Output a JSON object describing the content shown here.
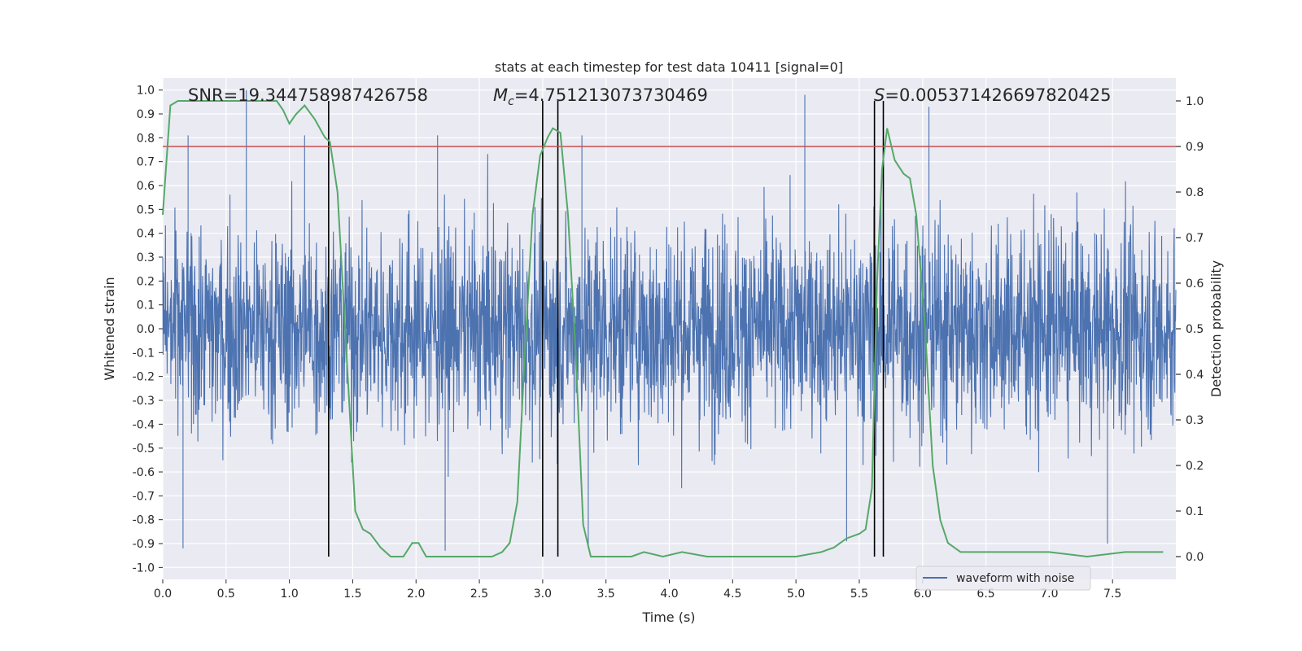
{
  "chart_data": {
    "type": "line",
    "title": "stats at each timestep for test data 10411 [signal=0]",
    "xlabel": "Time (s)",
    "ylabel": "Whitened strain",
    "y2label": "Detection probability",
    "xlim": [
      0.0,
      8.0
    ],
    "ylim": [
      -1.05,
      1.05
    ],
    "y2lim": [
      -0.05,
      1.05
    ],
    "x_ticks": [
      "0.0",
      "0.5",
      "1.0",
      "1.5",
      "2.0",
      "2.5",
      "3.0",
      "3.5",
      "4.0",
      "4.5",
      "5.0",
      "5.5",
      "6.0",
      "6.5",
      "7.0",
      "7.5"
    ],
    "y_ticks": [
      "-1.0",
      "-0.9",
      "-0.8",
      "-0.7",
      "-0.6",
      "-0.5",
      "-0.4",
      "-0.3",
      "-0.2",
      "-0.1",
      "0.0",
      "0.1",
      "0.2",
      "0.3",
      "0.4",
      "0.5",
      "0.6",
      "0.7",
      "0.8",
      "0.9",
      "1.0"
    ],
    "y2_ticks": [
      "0.0",
      "0.1",
      "0.2",
      "0.3",
      "0.4",
      "0.5",
      "0.6",
      "0.7",
      "0.8",
      "0.9",
      "1.0"
    ],
    "grid": true,
    "legend_position": "lower-right",
    "colors": {
      "waveform": "#4c72b0",
      "probability": "#55a868",
      "threshold": "#c44e52",
      "markers": "#000000",
      "background": "#eaeaf2",
      "grid": "#ffffff"
    },
    "annotations": {
      "snr": "SNR=19.344758987426758",
      "mc_symbol": "M",
      "mc_subscript": "c",
      "mc_value": "=4.751213073730469",
      "s_symbol": "S",
      "s_value": "=0.005371426697820425"
    },
    "threshold_y2": 0.9,
    "vertical_lines_x": [
      1.31,
      3.0,
      3.12,
      5.62,
      5.69
    ],
    "series": [
      {
        "name": "waveform with noise",
        "style": "noise",
        "x_range": [
          0.0,
          8.0
        ],
        "envelope_typical": [
          -0.55,
          0.55
        ],
        "spike_peaks": [
          {
            "x": 0.2,
            "y": 0.81
          },
          {
            "x": 0.66,
            "y": 1.0
          },
          {
            "x": 1.12,
            "y": 0.81
          },
          {
            "x": 2.17,
            "y": 0.81
          },
          {
            "x": 3.31,
            "y": 0.81
          },
          {
            "x": 5.07,
            "y": 0.98
          },
          {
            "x": 6.05,
            "y": 0.93
          },
          {
            "x": 0.16,
            "y": -0.92
          },
          {
            "x": 2.23,
            "y": -0.93
          },
          {
            "x": 3.36,
            "y": -0.92
          },
          {
            "x": 7.46,
            "y": -0.9
          },
          {
            "x": 5.4,
            "y": -0.89
          }
        ]
      },
      {
        "name": "",
        "style": "probability",
        "x": [
          0.0,
          0.06,
          0.12,
          0.2,
          0.3,
          0.4,
          0.5,
          0.6,
          0.7,
          0.8,
          0.9,
          0.95,
          1.0,
          1.05,
          1.12,
          1.2,
          1.28,
          1.32,
          1.38,
          1.45,
          1.52,
          1.58,
          1.64,
          1.72,
          1.8,
          1.9,
          1.97,
          2.02,
          2.08,
          2.2,
          2.3,
          2.45,
          2.6,
          2.68,
          2.74,
          2.8,
          2.86,
          2.92,
          2.98,
          3.04,
          3.08,
          3.14,
          3.2,
          3.26,
          3.32,
          3.38,
          3.5,
          3.7,
          3.8,
          3.95,
          4.1,
          4.3,
          4.6,
          5.0,
          5.2,
          5.3,
          5.4,
          5.5,
          5.55,
          5.6,
          5.64,
          5.68,
          5.72,
          5.78,
          5.85,
          5.9,
          5.95,
          6.02,
          6.08,
          6.14,
          6.2,
          6.3,
          6.5,
          6.7,
          7.0,
          7.3,
          7.6,
          7.9
        ],
        "y": [
          0.75,
          0.99,
          1.0,
          1.0,
          1.0,
          1.0,
          1.0,
          1.0,
          1.0,
          1.0,
          1.0,
          0.98,
          0.95,
          0.97,
          0.99,
          0.96,
          0.92,
          0.91,
          0.8,
          0.45,
          0.1,
          0.06,
          0.05,
          0.02,
          0.0,
          0.0,
          0.03,
          0.03,
          0.0,
          0.0,
          0.0,
          0.0,
          0.0,
          0.01,
          0.03,
          0.12,
          0.45,
          0.75,
          0.88,
          0.92,
          0.94,
          0.93,
          0.75,
          0.45,
          0.07,
          0.0,
          0.0,
          0.0,
          0.01,
          0.0,
          0.01,
          0.0,
          0.0,
          0.0,
          0.01,
          0.02,
          0.04,
          0.05,
          0.06,
          0.15,
          0.6,
          0.85,
          0.94,
          0.87,
          0.84,
          0.83,
          0.75,
          0.5,
          0.2,
          0.08,
          0.03,
          0.01,
          0.01,
          0.01,
          0.01,
          0.0,
          0.01,
          0.01
        ]
      }
    ]
  }
}
